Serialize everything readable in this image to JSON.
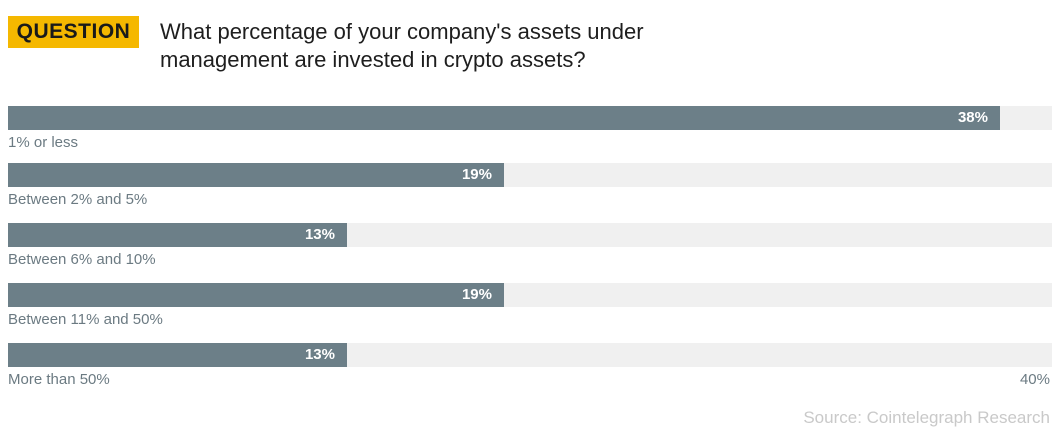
{
  "header": {
    "badge": "QUESTION",
    "question": "What percentage of your company's assets under management are invested in crypto assets?"
  },
  "chart_data": {
    "type": "bar",
    "orientation": "horizontal",
    "categories": [
      "1% or less",
      "Between 2% and 5%",
      "Between 6% and 10%",
      "Between 11% and 50%",
      "More than 50%"
    ],
    "values": [
      38,
      19,
      13,
      19,
      13
    ],
    "value_labels": [
      "38%",
      "19%",
      "13%",
      "19%",
      "13%"
    ],
    "xlim": [
      0,
      40
    ],
    "axis_max_label": "40%",
    "colors": {
      "bar": "#6c7f88",
      "track": "#f0f0f0",
      "badge": "#f5b800"
    }
  },
  "footer": {
    "source": "Source: Cointelegraph Research"
  }
}
